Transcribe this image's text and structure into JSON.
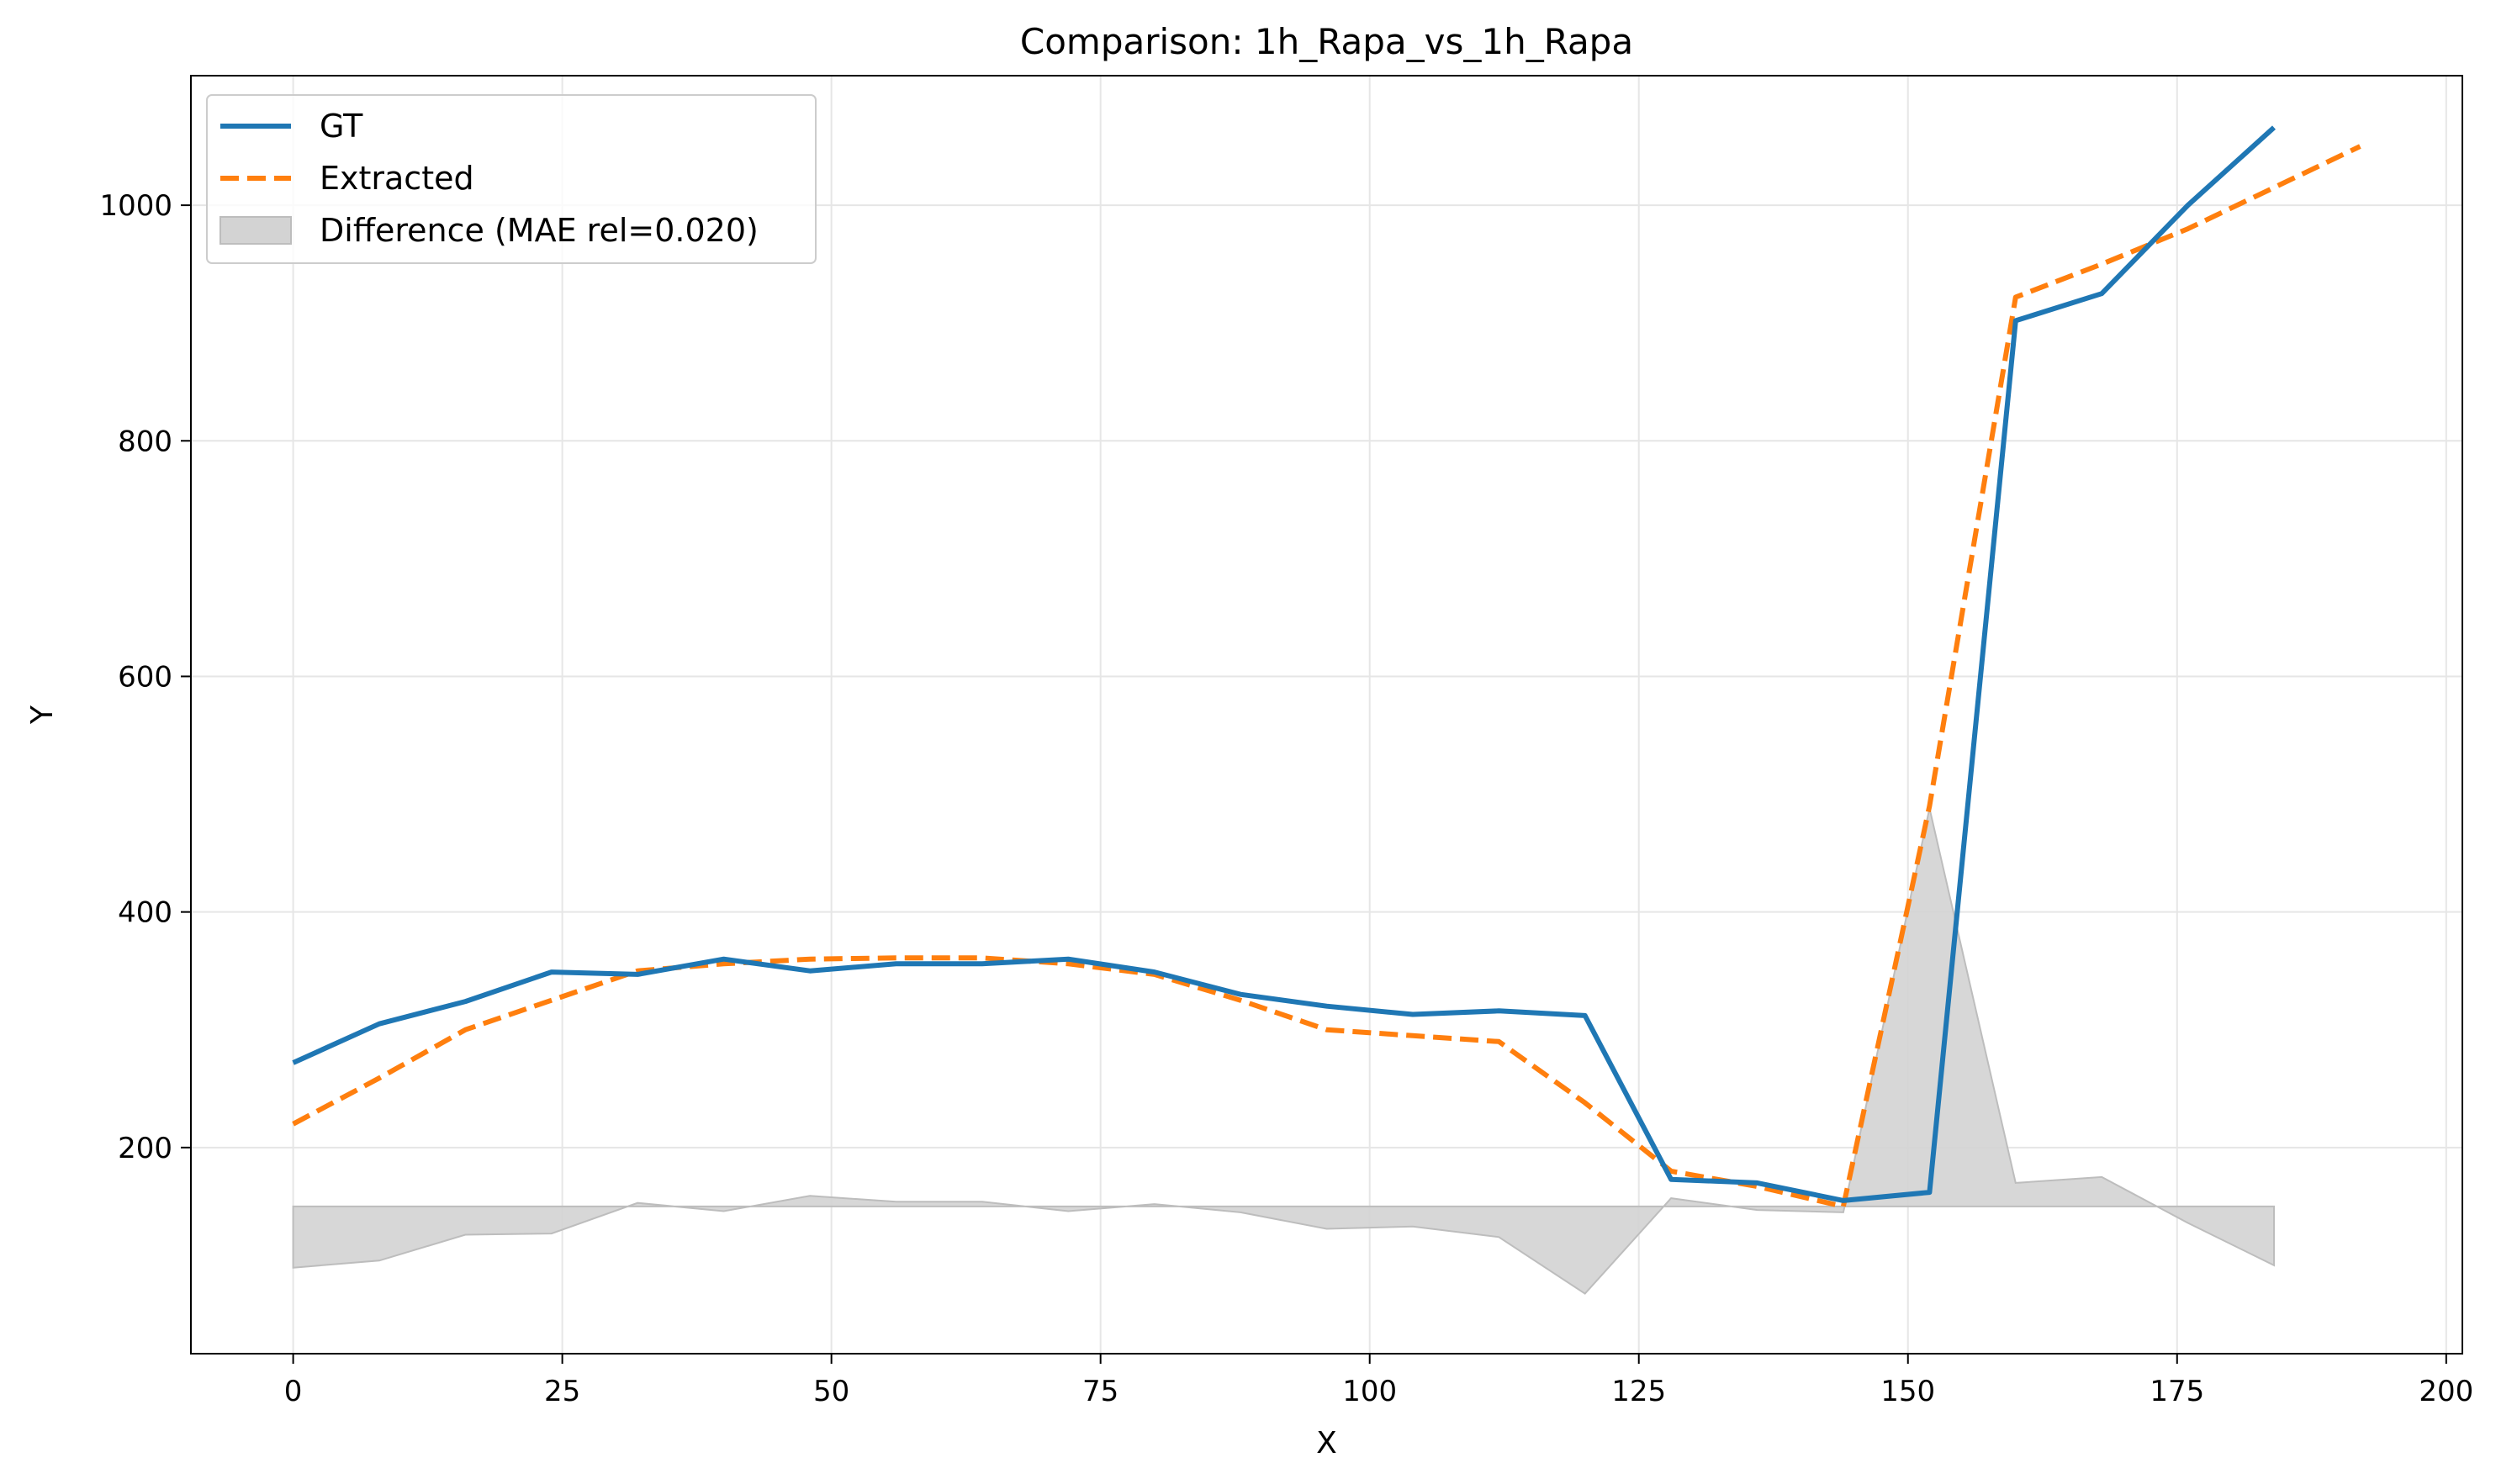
{
  "chart_data": {
    "type": "line",
    "title": "Comparison: 1h_Rapa_vs_1h_Rapa",
    "xlabel": "X",
    "ylabel": "Y",
    "xlim": [
      -9.5,
      201.5
    ],
    "ylim": [
      25,
      1110
    ],
    "xticks": [
      0,
      25,
      50,
      75,
      100,
      125,
      150,
      175,
      200
    ],
    "yticks": [
      200,
      400,
      600,
      800,
      1000
    ],
    "grid": true,
    "legend_position": "upper-left",
    "colors": {
      "gt": "#1f77b4",
      "extracted": "#ff7f0e",
      "difference": "#d3d3d3"
    },
    "series": [
      {
        "name": "GT",
        "style": "solid",
        "x": [
          0,
          8,
          16,
          24,
          32,
          40,
          48,
          56,
          64,
          72,
          80,
          88,
          96,
          104,
          112,
          120,
          128,
          136,
          144,
          152,
          160,
          168,
          176,
          184
        ],
        "y": [
          272,
          305,
          324,
          349,
          347,
          360,
          350,
          356,
          356,
          360,
          349,
          330,
          320,
          313,
          316,
          312,
          173,
          170,
          155,
          162,
          902,
          925,
          1000,
          1066
        ]
      },
      {
        "name": "Extracted",
        "style": "dashed",
        "x": [
          0,
          8,
          16,
          24,
          32,
          40,
          48,
          56,
          64,
          72,
          80,
          88,
          96,
          104,
          112,
          120,
          128,
          136,
          144,
          152,
          160,
          168,
          176,
          184,
          192
        ],
        "y": [
          220,
          259,
          300,
          325,
          350,
          356,
          360,
          361,
          361,
          356,
          347,
          325,
          300,
          295,
          290,
          238,
          180,
          167,
          150,
          490,
          922,
          950,
          980,
          1015,
          1050
        ]
      },
      {
        "name": "Difference (MAE rel=0.020)",
        "style": "fill",
        "baseline": 150,
        "x": [
          0,
          8,
          16,
          24,
          32,
          40,
          48,
          56,
          64,
          72,
          80,
          88,
          96,
          104,
          112,
          120,
          128,
          136,
          144,
          152,
          160,
          168,
          176,
          184
        ],
        "y": [
          98,
          104,
          126,
          127,
          153,
          146,
          159,
          154,
          154,
          146,
          152,
          145,
          131,
          133,
          124,
          76,
          157,
          147,
          145,
          488,
          170,
          175,
          136,
          100
        ]
      }
    ]
  }
}
